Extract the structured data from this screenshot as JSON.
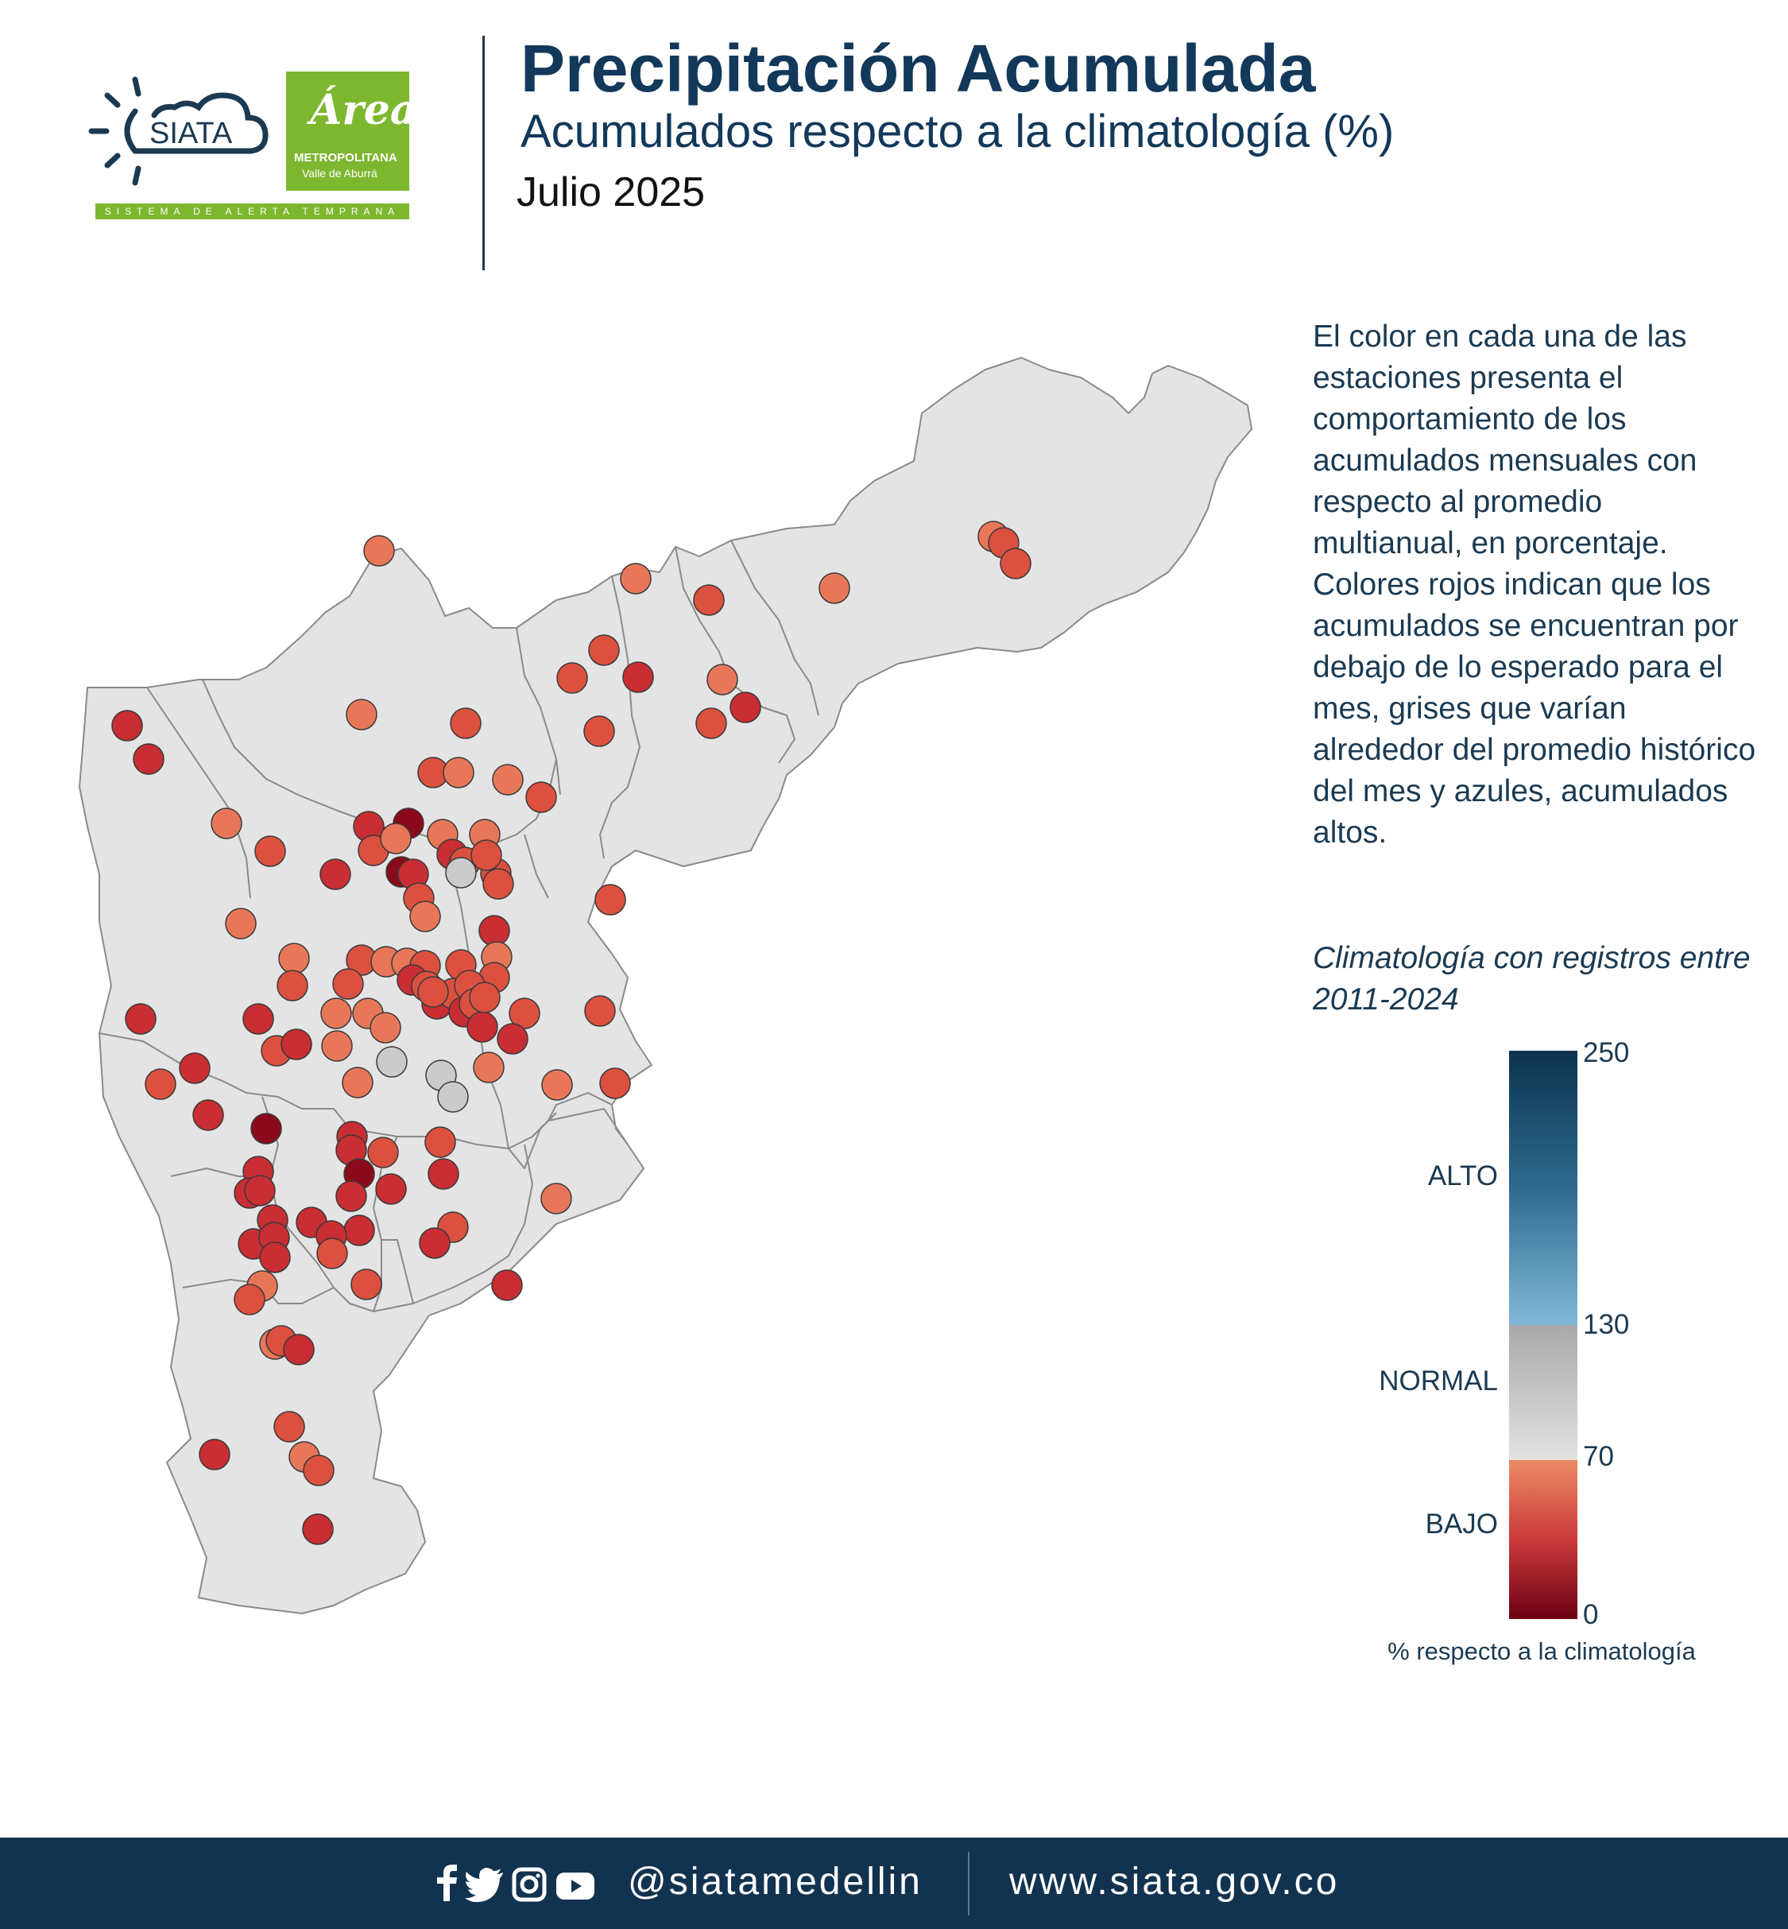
{
  "header": {
    "title": "Precipitación Acumulada",
    "subtitle": "Acumulados respecto a la climatología (%)",
    "date": "Julio 2025"
  },
  "logos": {
    "siata": "SIATA",
    "area_word": "Área",
    "area_line1": "METROPOLITANA",
    "area_line2": "Valle de Aburrá",
    "strip": "SISTEMA DE ALERTA TEMPRANA"
  },
  "description": "El color en cada una de las estaciones presenta el comportamiento de los acumulados mensuales con respecto al promedio multianual, en porcentaje. Colores rojos indican que los acumulados se encuentran por debajo de lo esperado para el mes, grises que varían alrededor del promedio histórico del mes y azules, acumulados altos.",
  "climatology_note": "Climatología con registros entre 2011-2024",
  "legend": {
    "ticks": [
      "250",
      "130",
      "70",
      "0"
    ],
    "categories": [
      "ALTO",
      "NORMAL",
      "BAJO"
    ],
    "caption": "% respecto a la climatología",
    "colors": {
      "high": "#0c3350",
      "high_light": "#82b8d8",
      "normal": "#c2c2c2",
      "low_light": "#ee8a66",
      "low_dark": "#6d0014"
    }
  },
  "footer": {
    "handle": "@siatamedellin",
    "website": "www.siata.gov.co",
    "icons": [
      "facebook-icon",
      "twitter-icon",
      "instagram-icon",
      "youtube-icon"
    ]
  },
  "map": {
    "region_fill": "#e4e4e4",
    "border_color": "#8a8a8a",
    "station_colors": {
      "dark": "#8a0a1c",
      "red": "#c82e33",
      "mid": "#dc5040",
      "light": "#e8775a",
      "gray": "#cbcbcb"
    }
  }
}
